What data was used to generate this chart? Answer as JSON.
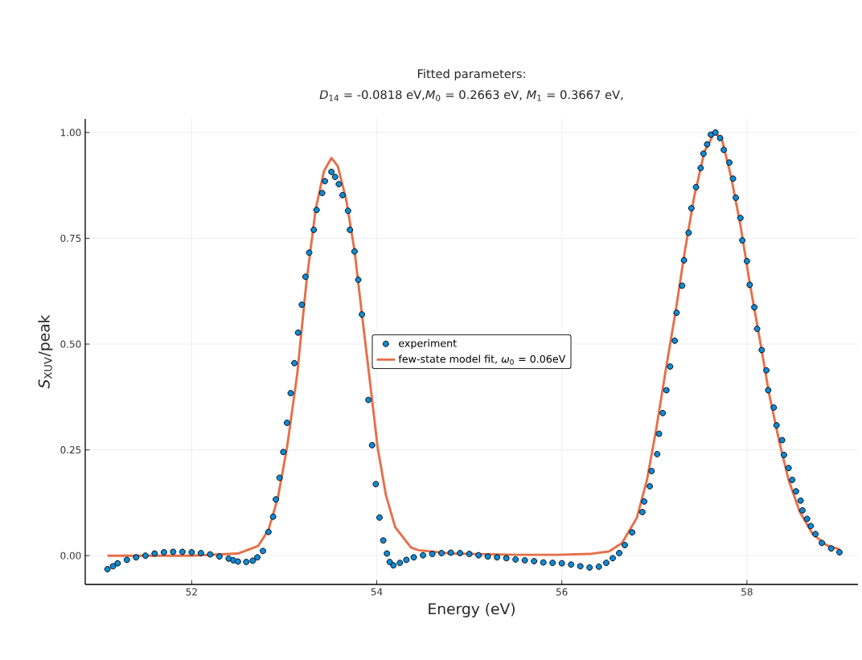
{
  "chart_data": {
    "type": "scatter",
    "title": "Fitted parameters:",
    "subtitle": "*D*$_{14}$ = -0.0818 eV,*M*$_{0}$ = 0.2663 eV, *M*$_{1}$ = 0.3667 eV,",
    "xlabel": "Energy (eV)",
    "ylabel": "*S*$_{XUV}$/peak",
    "xlim": [
      50.85,
      59.2
    ],
    "ylim": [
      -0.068,
      1.032
    ],
    "xticks": [
      52,
      54,
      56,
      58
    ],
    "yticks": [
      {
        "value": 0,
        "label": "0.00"
      },
      {
        "value": 0.25,
        "label": "0.25"
      },
      {
        "value": 0.5,
        "label": "0.50"
      },
      {
        "value": 0.75,
        "label": "0.75"
      },
      {
        "value": 1,
        "label": "1.00"
      }
    ],
    "grid": true,
    "legend": "center",
    "marker": "circle",
    "series": [
      {
        "name": "experiment",
        "color": "#0f8ad6",
        "x": [
          51.09,
          51.15,
          51.2,
          51.3,
          51.4,
          51.5,
          51.6,
          51.7,
          51.8,
          51.9,
          52.0,
          52.1,
          52.2,
          52.3,
          52.4,
          52.45,
          52.5,
          52.59,
          52.66,
          52.71,
          52.77,
          52.83,
          52.88,
          52.91,
          52.95,
          52.99,
          53.03,
          53.07,
          53.11,
          53.15,
          53.19,
          53.23,
          53.27,
          53.32,
          53.35,
          53.41,
          53.44,
          53.51,
          53.55,
          53.59,
          53.63,
          53.69,
          53.71,
          53.76,
          53.8,
          53.84,
          53.91,
          53.95,
          53.99,
          54.03,
          54.07,
          54.11,
          54.14,
          54.18,
          54.25,
          54.32,
          54.4,
          54.5,
          54.6,
          54.7,
          54.8,
          54.9,
          55.0,
          55.1,
          55.2,
          55.3,
          55.4,
          55.5,
          55.6,
          55.7,
          55.8,
          55.9,
          56.0,
          56.1,
          56.2,
          56.3,
          56.4,
          56.48,
          56.55,
          56.62,
          56.68,
          56.76,
          56.87,
          56.89,
          56.95,
          56.97,
          57.03,
          57.05,
          57.09,
          57.13,
          57.17,
          57.22,
          57.24,
          57.3,
          57.32,
          57.37,
          57.4,
          57.45,
          57.5,
          57.53,
          57.57,
          57.61,
          57.66,
          57.71,
          57.75,
          57.81,
          57.85,
          57.88,
          57.93,
          57.95,
          58.0,
          58.03,
          58.08,
          58.11,
          58.16,
          58.21,
          58.23,
          58.29,
          58.32,
          58.38,
          58.4,
          58.45,
          58.49,
          58.53,
          58.58,
          58.6,
          58.65,
          58.69,
          58.74,
          58.81,
          58.91,
          59.0
        ],
        "values": [
          -0.032,
          -0.025,
          -0.018,
          -0.01,
          -0.004,
          0.0,
          0.005,
          0.008,
          0.009,
          0.009,
          0.008,
          0.006,
          0.003,
          -0.002,
          -0.007,
          -0.011,
          -0.014,
          -0.015,
          -0.012,
          -0.004,
          0.011,
          0.056,
          0.092,
          0.133,
          0.184,
          0.245,
          0.314,
          0.384,
          0.455,
          0.527,
          0.593,
          0.659,
          0.716,
          0.77,
          0.817,
          0.857,
          0.885,
          0.907,
          0.895,
          0.878,
          0.852,
          0.815,
          0.77,
          0.719,
          0.652,
          0.57,
          0.368,
          0.261,
          0.169,
          0.09,
          0.036,
          0.005,
          -0.015,
          -0.023,
          -0.017,
          -0.01,
          -0.004,
          0.001,
          0.004,
          0.006,
          0.007,
          0.006,
          0.004,
          0.001,
          -0.002,
          -0.004,
          -0.006,
          -0.009,
          -0.011,
          -0.013,
          -0.016,
          -0.017,
          -0.018,
          -0.021,
          -0.025,
          -0.028,
          -0.026,
          -0.017,
          -0.006,
          0.006,
          0.025,
          0.055,
          0.103,
          0.128,
          0.164,
          0.2,
          0.24,
          0.288,
          0.337,
          0.391,
          0.447,
          0.508,
          0.574,
          0.638,
          0.698,
          0.763,
          0.821,
          0.871,
          0.916,
          0.95,
          0.972,
          0.995,
          1.0,
          0.987,
          0.959,
          0.929,
          0.891,
          0.846,
          0.798,
          0.745,
          0.696,
          0.64,
          0.587,
          0.536,
          0.486,
          0.438,
          0.391,
          0.35,
          0.308,
          0.273,
          0.238,
          0.207,
          0.179,
          0.152,
          0.13,
          0.107,
          0.087,
          0.07,
          0.051,
          0.03,
          0.017,
          0.008
        ]
      },
      {
        "name": "few-state model fit, *ω*$_{0}$ = 0.06eV",
        "type": "line",
        "marker": "none",
        "color": "#e5704a",
        "x": [
          51.09,
          52.0,
          52.5,
          52.72,
          52.83,
          52.93,
          53.03,
          53.14,
          53.24,
          53.34,
          53.43,
          53.51,
          53.58,
          53.67,
          53.76,
          53.84,
          53.93,
          54.01,
          54.1,
          54.2,
          54.37,
          54.45,
          54.79,
          55.5,
          55.95,
          56.3,
          56.51,
          56.65,
          56.81,
          56.92,
          57.02,
          57.12,
          57.23,
          57.33,
          57.43,
          57.54,
          57.65,
          57.73,
          57.83,
          57.93,
          58.03,
          58.14,
          58.24,
          58.35,
          58.45,
          58.57,
          58.71,
          58.86,
          59.0
        ],
        "values": [
          0.0,
          0.0,
          0.005,
          0.023,
          0.061,
          0.135,
          0.255,
          0.428,
          0.646,
          0.819,
          0.909,
          0.94,
          0.92,
          0.841,
          0.721,
          0.57,
          0.405,
          0.255,
          0.142,
          0.067,
          0.019,
          0.013,
          0.005,
          0.002,
          0.002,
          0.004,
          0.01,
          0.03,
          0.089,
          0.179,
          0.299,
          0.435,
          0.578,
          0.721,
          0.848,
          0.954,
          1.0,
          0.984,
          0.894,
          0.781,
          0.645,
          0.51,
          0.382,
          0.269,
          0.179,
          0.104,
          0.051,
          0.025,
          0.015
        ]
      }
    ]
  }
}
